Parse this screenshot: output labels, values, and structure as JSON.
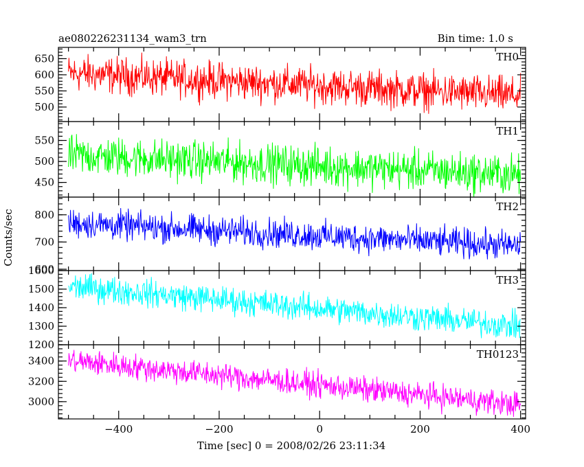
{
  "header": {
    "title": "ae080226231134_wam3_trn",
    "bin_time": "Bin time: 1.0 s"
  },
  "chart_data": {
    "type": "line",
    "xlabel": "Time [sec] 0 = 2008/02/26 23:11:34",
    "ylabel": "Counts/sec",
    "xlim": [
      -520,
      410
    ],
    "xticks": [
      -400,
      -200,
      0,
      200,
      400
    ],
    "grid": false,
    "panels": [
      {
        "name": "TH0",
        "color": "#ff0000",
        "ylim": [
          455,
          685
        ],
        "yticks": [
          500,
          550,
          600,
          650
        ],
        "trend": [
          [
            -500,
            605
          ],
          [
            400,
            535
          ]
        ],
        "noise_amplitude": 40
      },
      {
        "name": "TH1",
        "color": "#00ff00",
        "ylim": [
          415,
          595
        ],
        "yticks": [
          450,
          500,
          550
        ],
        "trend": [
          [
            -500,
            515
          ],
          [
            400,
            468
          ]
        ],
        "noise_amplitude": 33
      },
      {
        "name": "TH2",
        "color": "#0000ff",
        "ylim": [
          595,
          865
        ],
        "yticks": [
          600,
          700,
          800
        ],
        "trend": [
          [
            -500,
            770
          ],
          [
            400,
            685
          ]
        ],
        "noise_amplitude": 38
      },
      {
        "name": "TH3",
        "color": "#00ffff",
        "ylim": [
          1200,
          1600
        ],
        "yticks": [
          1200,
          1300,
          1400,
          1500,
          1600
        ],
        "trend": [
          [
            -500,
            1515
          ],
          [
            400,
            1300
          ]
        ],
        "noise_amplitude": 52
      },
      {
        "name": "TH0123",
        "color": "#ff00ff",
        "ylim": [
          2830,
          3560
        ],
        "yticks": [
          3000,
          3200,
          3400
        ],
        "trend": [
          [
            -500,
            3405
          ],
          [
            400,
            2970
          ]
        ],
        "noise_amplitude": 88
      }
    ]
  }
}
